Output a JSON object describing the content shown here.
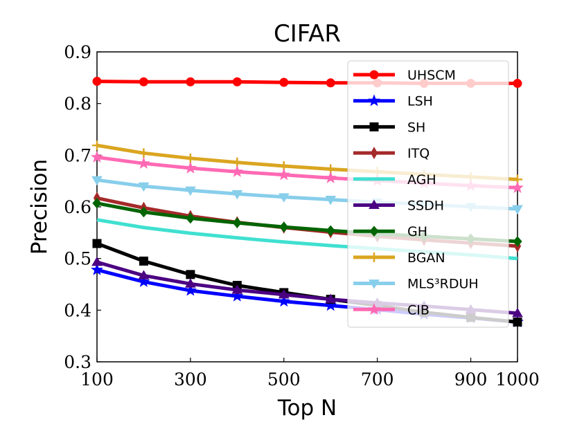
{
  "chart_data": {
    "type": "line",
    "title": "CIFAR",
    "xlabel": "Top N",
    "ylabel": "Precision",
    "x": [
      100,
      200,
      300,
      400,
      500,
      600,
      700,
      800,
      900,
      1000
    ],
    "xlim": [
      100,
      1000
    ],
    "ylim": [
      0.3,
      0.9
    ],
    "xticks": [
      100,
      300,
      500,
      700,
      900,
      1000
    ],
    "xtick_labels": [
      "100",
      "300",
      "500",
      "700",
      "900",
      "1000"
    ],
    "yticks": [
      0.3,
      0.4,
      0.5,
      0.6,
      0.7,
      0.8,
      0.9
    ],
    "ytick_labels": [
      "0.3",
      "0.4",
      "0.5",
      "0.6",
      "0.7",
      "0.8",
      "0.9"
    ],
    "grid": false,
    "legend_position": "top-right",
    "series": [
      {
        "name": "UHSCM",
        "color": "#ff0000",
        "marker": "circle",
        "values": [
          0.843,
          0.842,
          0.842,
          0.842,
          0.841,
          0.84,
          0.84,
          0.839,
          0.839,
          0.839
        ]
      },
      {
        "name": "LSH",
        "color": "#0000ff",
        "marker": "star",
        "values": [
          0.478,
          0.455,
          0.438,
          0.427,
          0.417,
          0.409,
          0.401,
          0.392,
          0.385,
          0.377
        ]
      },
      {
        "name": "SH",
        "color": "#000000",
        "marker": "square",
        "values": [
          0.529,
          0.495,
          0.469,
          0.448,
          0.434,
          0.421,
          0.409,
          0.396,
          0.386,
          0.377
        ]
      },
      {
        "name": "ITQ",
        "color": "#a52a2a",
        "marker": "thin_diamond",
        "values": [
          0.617,
          0.598,
          0.582,
          0.57,
          0.56,
          0.551,
          0.543,
          0.536,
          0.53,
          0.524
        ]
      },
      {
        "name": "AGH",
        "color": "#40e0d0",
        "marker": "none",
        "values": [
          0.575,
          0.56,
          0.549,
          0.54,
          0.532,
          0.525,
          0.519,
          0.513,
          0.507,
          0.5
        ]
      },
      {
        "name": "SSDH",
        "color": "#4b0082",
        "marker": "triangle",
        "values": [
          0.493,
          0.467,
          0.451,
          0.439,
          0.43,
          0.421,
          0.414,
          0.408,
          0.401,
          0.394
        ]
      },
      {
        "name": "GH",
        "color": "#006400",
        "marker": "diamond",
        "values": [
          0.607,
          0.59,
          0.578,
          0.569,
          0.561,
          0.554,
          0.548,
          0.543,
          0.538,
          0.533
        ]
      },
      {
        "name": "BGAN",
        "color": "#daa520",
        "marker": "plus",
        "values": [
          0.719,
          0.704,
          0.694,
          0.686,
          0.679,
          0.673,
          0.668,
          0.663,
          0.658,
          0.653
        ]
      },
      {
        "name": "MLS³RDUH",
        "color": "#87ceeb",
        "marker": "triangle_down",
        "values": [
          0.652,
          0.64,
          0.632,
          0.625,
          0.619,
          0.614,
          0.609,
          0.605,
          0.6,
          0.596
        ]
      },
      {
        "name": "CIB",
        "color": "#ff69b4",
        "marker": "star",
        "values": [
          0.696,
          0.684,
          0.675,
          0.668,
          0.662,
          0.656,
          0.651,
          0.646,
          0.641,
          0.637
        ]
      }
    ]
  }
}
